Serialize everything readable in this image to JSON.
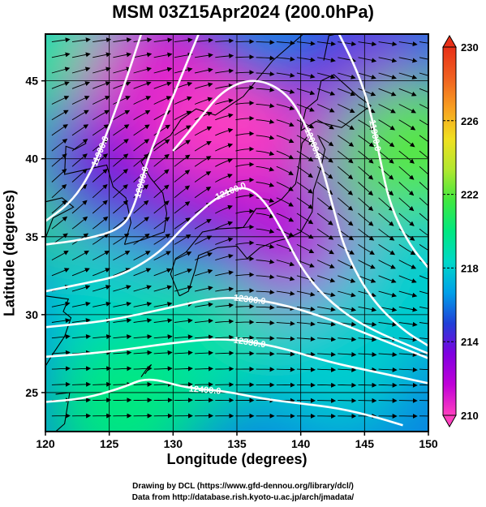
{
  "chart_data": {
    "type": "heatmap",
    "title": "MSM 03Z15Apr2024 (200.0hPa)",
    "xlabel": "Longitude (degrees)",
    "ylabel": "Latitude  (degrees)",
    "xlim": [
      120,
      150
    ],
    "ylim": [
      22.5,
      48
    ],
    "x_ticks": [
      120,
      125,
      130,
      135,
      140,
      145,
      150
    ],
    "y_ticks": [
      25,
      30,
      35,
      40,
      45
    ],
    "colorbar": {
      "min": 210,
      "max": 230,
      "ticks": [
        210,
        214,
        218,
        222,
        226,
        230
      ],
      "colors": [
        "#ff40c0",
        "#c000d8",
        "#8000e0",
        "#2040d8",
        "#00a0e8",
        "#00d8c8",
        "#00e880",
        "#40e840",
        "#b0e830",
        "#f0e020",
        "#f8a020",
        "#f06020",
        "#e83018"
      ]
    },
    "temperature_field": [
      {
        "lon": 121,
        "lat": 47,
        "value": 218
      },
      {
        "lon": 123,
        "lat": 44,
        "value": 220
      },
      {
        "lon": 122,
        "lat": 38,
        "value": 221
      },
      {
        "lon": 125,
        "lat": 40,
        "value": 214
      },
      {
        "lon": 129,
        "lat": 45,
        "value": 211
      },
      {
        "lon": 135,
        "lat": 41,
        "value": 210
      },
      {
        "lon": 135,
        "lat": 35,
        "value": 211
      },
      {
        "lon": 131,
        "lat": 33,
        "value": 214
      },
      {
        "lon": 142,
        "lat": 33,
        "value": 212
      },
      {
        "lon": 146,
        "lat": 44,
        "value": 213
      },
      {
        "lon": 149,
        "lat": 40,
        "value": 222
      },
      {
        "lon": 149,
        "lat": 32,
        "value": 218
      },
      {
        "lon": 125,
        "lat": 30,
        "value": 218
      },
      {
        "lon": 132,
        "lat": 28,
        "value": 219
      },
      {
        "lon": 143,
        "lat": 27,
        "value": 218
      },
      {
        "lon": 126,
        "lat": 24,
        "value": 220
      }
    ],
    "contours": [
      {
        "label": "11900.0",
        "points": [
          [
            120,
            36
          ],
          [
            122,
            37.2
          ],
          [
            123.5,
            39
          ],
          [
            125,
            42
          ],
          [
            126.5,
            45.5
          ],
          [
            127.5,
            48
          ]
        ]
      },
      {
        "label": "12000.0",
        "points": [
          [
            120,
            34.5
          ],
          [
            123,
            34.8
          ],
          [
            126,
            35.5
          ],
          [
            127,
            37
          ],
          [
            128,
            40
          ],
          [
            129.5,
            43
          ],
          [
            131,
            46
          ],
          [
            132,
            48
          ]
        ]
      },
      {
        "label": "12000.0",
        "points": [
          [
            130,
            40.5
          ],
          [
            132,
            42.5
          ],
          [
            134,
            44.5
          ],
          [
            136.5,
            45.2
          ],
          [
            139,
            44.2
          ],
          [
            140.5,
            42
          ],
          [
            141.5,
            40
          ],
          [
            142.5,
            37
          ],
          [
            143.5,
            34
          ],
          [
            145.5,
            31
          ],
          [
            148,
            29
          ],
          [
            150,
            28
          ]
        ]
      },
      {
        "label": "11900.0",
        "points": [
          [
            143,
            48
          ],
          [
            144.5,
            45.5
          ],
          [
            145.5,
            43
          ],
          [
            146.2,
            40
          ],
          [
            147,
            37
          ],
          [
            148.5,
            34.5
          ],
          [
            150,
            33
          ]
        ]
      },
      {
        "label": "12100.0",
        "points": [
          [
            120,
            31.5
          ],
          [
            123,
            32
          ],
          [
            126,
            32.5
          ],
          [
            129,
            34
          ],
          [
            131,
            35.8
          ],
          [
            133.5,
            37.6
          ],
          [
            135.5,
            38.3
          ],
          [
            137,
            37.5
          ],
          [
            138.5,
            35.5
          ],
          [
            140,
            33
          ],
          [
            142,
            31
          ],
          [
            145,
            29.2
          ],
          [
            150,
            27.5
          ]
        ]
      },
      {
        "label": "12300.0",
        "points": [
          [
            120,
            29.2
          ],
          [
            125,
            29.6
          ],
          [
            130,
            30.5
          ],
          [
            134,
            31.2
          ],
          [
            138,
            30.8
          ],
          [
            142,
            29.8
          ],
          [
            146,
            28.5
          ],
          [
            150,
            27.2
          ]
        ]
      },
      {
        "label": "12330.0",
        "points": [
          [
            120,
            27.3
          ],
          [
            125,
            27.6
          ],
          [
            130,
            28.2
          ],
          [
            134,
            28.5
          ],
          [
            138,
            28
          ],
          [
            142,
            27
          ],
          [
            146,
            26.3
          ],
          [
            150,
            25.6
          ]
        ]
      },
      {
        "label": "12400.0",
        "points": [
          [
            120,
            24.4
          ],
          [
            123,
            24.6
          ],
          [
            126,
            25.3
          ],
          [
            128,
            26
          ],
          [
            131,
            25.3
          ],
          [
            134,
            25.1
          ],
          [
            137,
            24.6
          ],
          [
            140,
            24.3
          ],
          [
            143,
            24
          ],
          [
            146,
            23.4
          ],
          [
            148,
            22.9
          ]
        ]
      }
    ]
  },
  "footer": {
    "credit1": "Drawing by DCL (https://www.gfd-dennou.org/library/dcl/)",
    "credit2": "Data from http://database.rish.kyoto-u.ac.jp/arch/jmadata/"
  }
}
